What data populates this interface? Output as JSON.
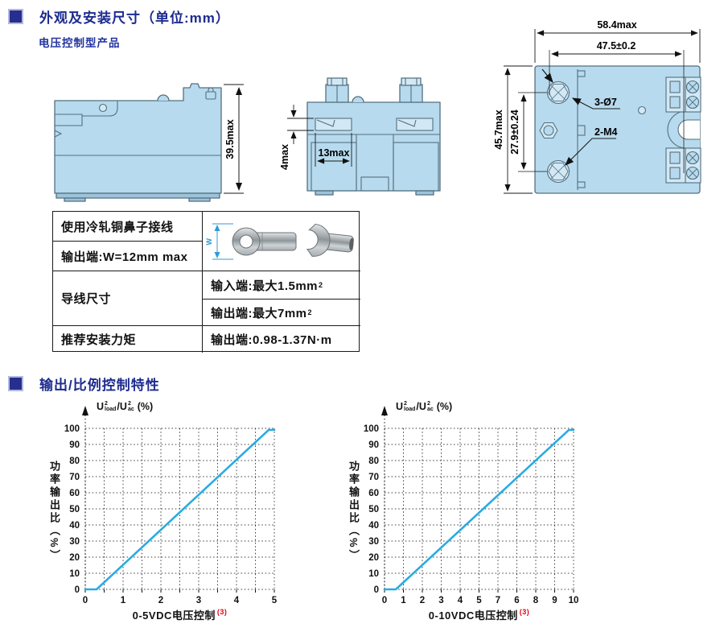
{
  "header": {
    "title": "外观及安装尺寸（单位:mm）",
    "subtitle": "电压控制型产品"
  },
  "drawings": {
    "side_view": {
      "height": "39.5max"
    },
    "front_view": {
      "clamp": "4max",
      "width": "13max"
    },
    "top_view": {
      "width": "58.4max",
      "hole_span": "47.5±0.2",
      "height": "45.7max",
      "hole_vspan": "27.9±0.24",
      "holes": "3-Ø7",
      "threads": "2-M4"
    }
  },
  "spec_table": {
    "lug_note": "使用冷轧铜鼻子接线",
    "lug_width": "输出端:W=12mm max",
    "w_label": "W",
    "wire_label": "导线尺寸",
    "wire_input": {
      "text": "输入端:最大1.5mm",
      "sup": "2"
    },
    "wire_output": {
      "text": "输出端:最大7mm",
      "sup": "2"
    },
    "torque_label": "推荐安装力矩",
    "torque_value": "输出端:0.98-1.37N·m"
  },
  "section2": {
    "title": "输出/比例控制特性"
  },
  "chart_data": [
    {
      "type": "line",
      "caption": "0-5VDC电压控制",
      "footnote": "(3)",
      "ylabel": "功率输出比（%）",
      "ratio_label": {
        "base1": "U",
        "sup1": "2",
        "sub1": "load",
        "slash": "/",
        "base2": "U",
        "sup2": "2",
        "sub2": "ac",
        "suffix": "(%)"
      },
      "x": [
        0,
        0.3,
        4.85,
        5
      ],
      "y": [
        0,
        0,
        99,
        99
      ],
      "xlim": [
        0,
        5
      ],
      "ylim": [
        0,
        100
      ],
      "x_grid_step": 0.5,
      "xticks": [
        "0",
        "1",
        "2",
        "3",
        "4",
        "5"
      ],
      "yticks": [
        "0",
        "10",
        "20",
        "30",
        "40",
        "50",
        "60",
        "70",
        "80",
        "90",
        "100"
      ],
      "line_color": "#29ABE2",
      "grid": "dotted"
    },
    {
      "type": "line",
      "caption": "0-10VDC电压控制",
      "footnote": "(3)",
      "ylabel": "功率输出比（%）",
      "ratio_label": {
        "base1": "U",
        "sup1": "2",
        "sub1": "load",
        "slash": "/",
        "base2": "U",
        "sup2": "2",
        "sub2": "ac",
        "suffix": "(%)"
      },
      "x": [
        0,
        0.6,
        9.75,
        10
      ],
      "y": [
        0,
        0,
        99,
        99
      ],
      "xlim": [
        0,
        10
      ],
      "ylim": [
        0,
        100
      ],
      "x_grid_step": 1,
      "xticks": [
        "0",
        "1",
        "2",
        "3",
        "4",
        "5",
        "7",
        "6",
        "8",
        "9",
        "10"
      ],
      "yticks": [
        "0",
        "10",
        "20",
        "30",
        "40",
        "50",
        "60",
        "70",
        "80",
        "90",
        "100"
      ],
      "line_color": "#29ABE2",
      "grid": "dotted"
    }
  ],
  "colors": {
    "accent_navy": "#272F8E",
    "drawing_fill": "#B7DAEE",
    "line_blue": "#29ABE2",
    "footnote_red": "#E60012"
  }
}
